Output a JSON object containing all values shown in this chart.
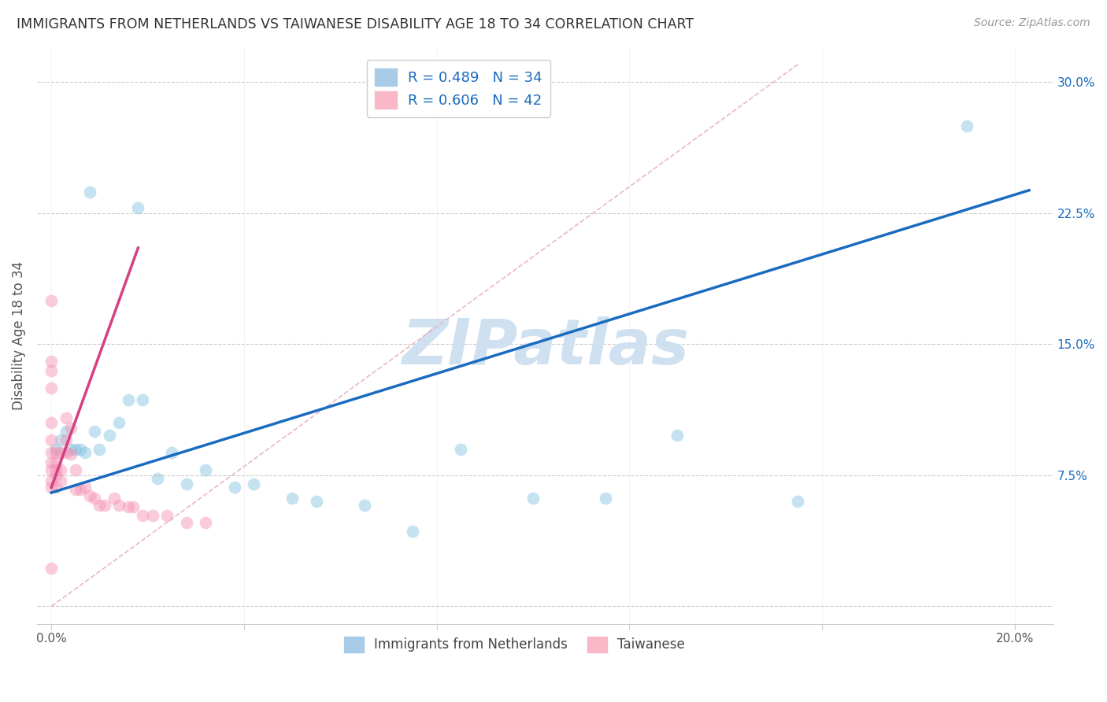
{
  "title": "IMMIGRANTS FROM NETHERLANDS VS TAIWANESE DISABILITY AGE 18 TO 34 CORRELATION CHART",
  "source": "Source: ZipAtlas.com",
  "ylabel": "Disability Age 18 to 34",
  "x_ticks": [
    0.0,
    0.04,
    0.08,
    0.12,
    0.16,
    0.2
  ],
  "x_tick_labels": [
    "0.0%",
    "",
    "",
    "",
    "",
    "20.0%"
  ],
  "y_ticks": [
    0.0,
    0.075,
    0.15,
    0.225,
    0.3
  ],
  "y_tick_labels": [
    "",
    "7.5%",
    "15.0%",
    "22.5%",
    "30.0%"
  ],
  "xlim": [
    -0.003,
    0.208
  ],
  "ylim": [
    -0.01,
    0.32
  ],
  "legend_labels_bottom": [
    "Immigrants from Netherlands",
    "Taiwanese"
  ],
  "blue_scatter_x": [
    0.008,
    0.018,
    0.001,
    0.002,
    0.003,
    0.004,
    0.005,
    0.006,
    0.007,
    0.009,
    0.01,
    0.012,
    0.014,
    0.016,
    0.019,
    0.022,
    0.025,
    0.028,
    0.032,
    0.038,
    0.042,
    0.05,
    0.055,
    0.065,
    0.075,
    0.085,
    0.1,
    0.115,
    0.13,
    0.155,
    0.19
  ],
  "blue_scatter_y": [
    0.237,
    0.228,
    0.09,
    0.095,
    0.1,
    0.09,
    0.09,
    0.09,
    0.088,
    0.1,
    0.09,
    0.098,
    0.105,
    0.118,
    0.118,
    0.073,
    0.088,
    0.07,
    0.078,
    0.068,
    0.07,
    0.062,
    0.06,
    0.058,
    0.043,
    0.09,
    0.062,
    0.062,
    0.098,
    0.06,
    0.275
  ],
  "pink_scatter_x": [
    0.0,
    0.0,
    0.0,
    0.0,
    0.0,
    0.0,
    0.0,
    0.0,
    0.0,
    0.0,
    0.0,
    0.001,
    0.001,
    0.001,
    0.001,
    0.001,
    0.002,
    0.002,
    0.002,
    0.003,
    0.003,
    0.003,
    0.004,
    0.004,
    0.005,
    0.005,
    0.006,
    0.007,
    0.008,
    0.009,
    0.01,
    0.011,
    0.013,
    0.014,
    0.016,
    0.017,
    0.019,
    0.021,
    0.024,
    0.028,
    0.032,
    0.0
  ],
  "pink_scatter_y": [
    0.175,
    0.14,
    0.135,
    0.125,
    0.105,
    0.095,
    0.088,
    0.082,
    0.078,
    0.072,
    0.068,
    0.088,
    0.082,
    0.078,
    0.075,
    0.068,
    0.088,
    0.078,
    0.072,
    0.108,
    0.095,
    0.088,
    0.102,
    0.087,
    0.078,
    0.067,
    0.067,
    0.068,
    0.063,
    0.062,
    0.058,
    0.058,
    0.062,
    0.058,
    0.057,
    0.057,
    0.052,
    0.052,
    0.052,
    0.048,
    0.048,
    0.022
  ],
  "blue_line_x": [
    0.0,
    0.203
  ],
  "blue_line_y": [
    0.065,
    0.238
  ],
  "pink_line_x": [
    0.0,
    0.018
  ],
  "pink_line_y": [
    0.068,
    0.205
  ],
  "diag_line_x": [
    0.0,
    0.155
  ],
  "diag_line_y": [
    0.0,
    0.31
  ],
  "scatter_size": 130,
  "scatter_alpha": 0.45,
  "blue_color": "#7fbfdf",
  "pink_color": "#f48fb1",
  "blue_line_color": "#1a6bbf",
  "pink_line_color": "#d44080",
  "diag_line_color": "#e8b0c0",
  "watermark": "ZIPatlas",
  "watermark_color": "#cfe0f0",
  "bg_color": "#ffffff"
}
